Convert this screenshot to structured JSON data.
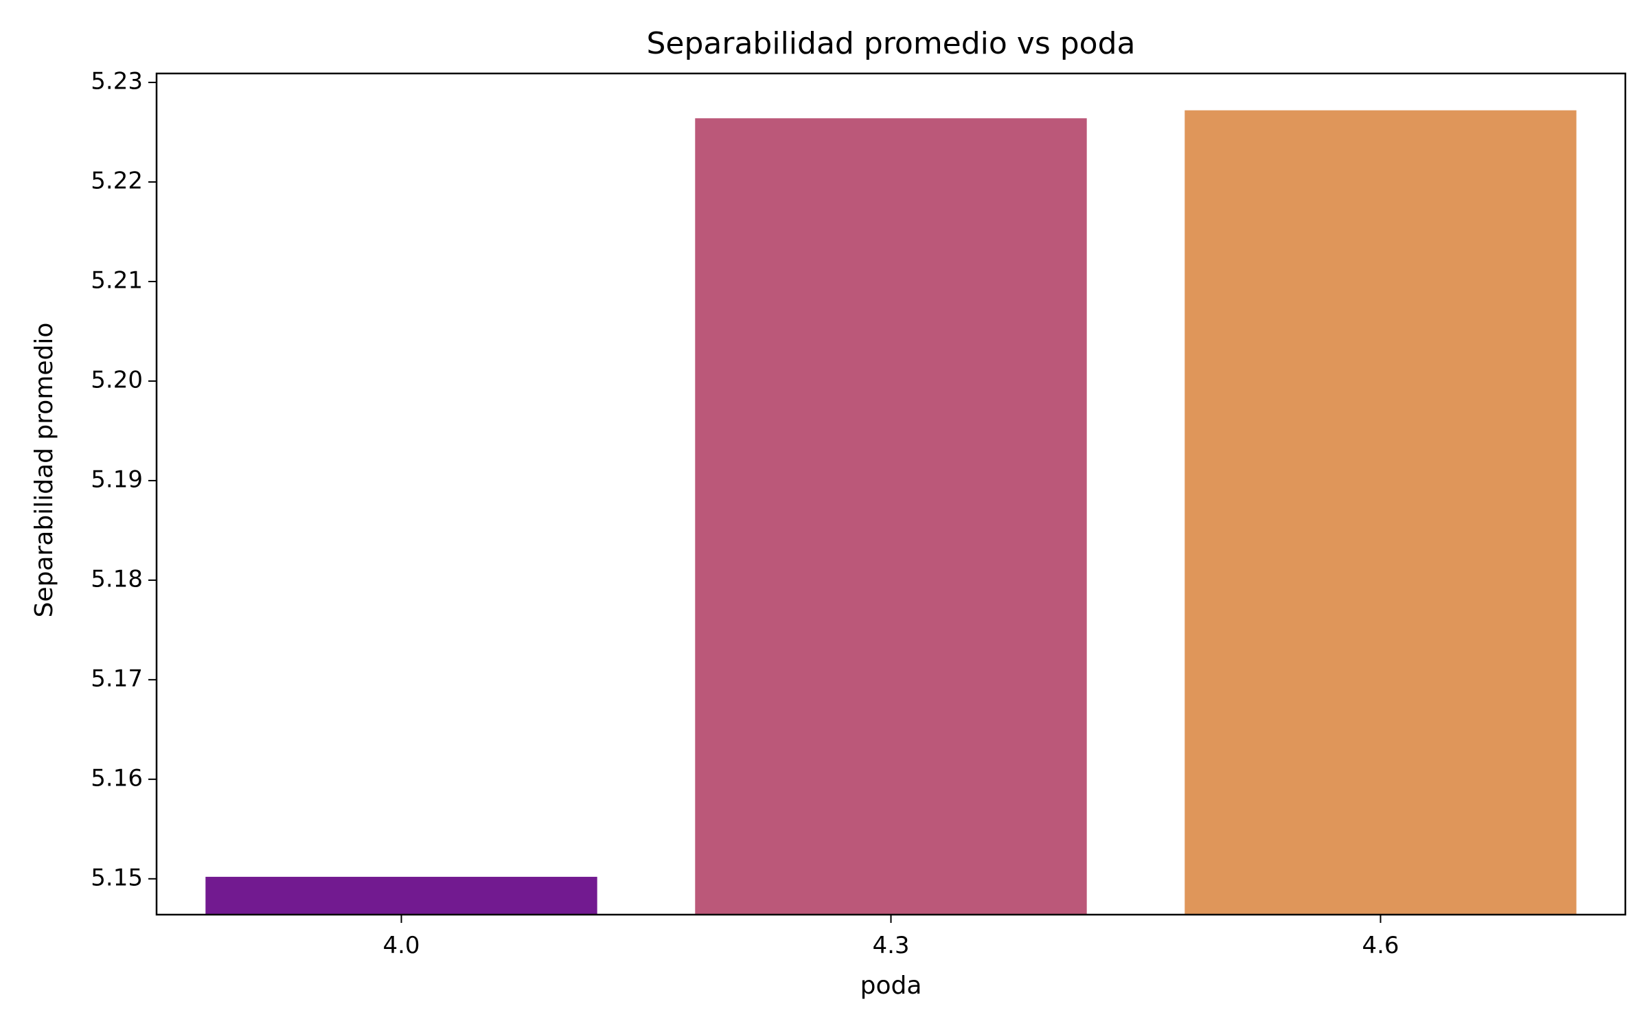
{
  "chart_data": {
    "type": "bar",
    "title": "Separabilidad promedio vs poda",
    "xlabel": "poda",
    "ylabel": "Separabilidad promedio",
    "categories": [
      "4.0",
      "4.3",
      "4.6"
    ],
    "values": [
      5.1502,
      5.2264,
      5.2272
    ],
    "colors": [
      "#721a90",
      "#bb5879",
      "#df965a"
    ],
    "ylim": [
      5.1464,
      5.2309
    ],
    "yticks": [
      5.15,
      5.16,
      5.17,
      5.18,
      5.19,
      5.2,
      5.21,
      5.22,
      5.23
    ],
    "ytick_labels": [
      "5.15",
      "5.16",
      "5.17",
      "5.18",
      "5.19",
      "5.20",
      "5.21",
      "5.22",
      "5.23"
    ],
    "grid": false,
    "legend": "none"
  }
}
